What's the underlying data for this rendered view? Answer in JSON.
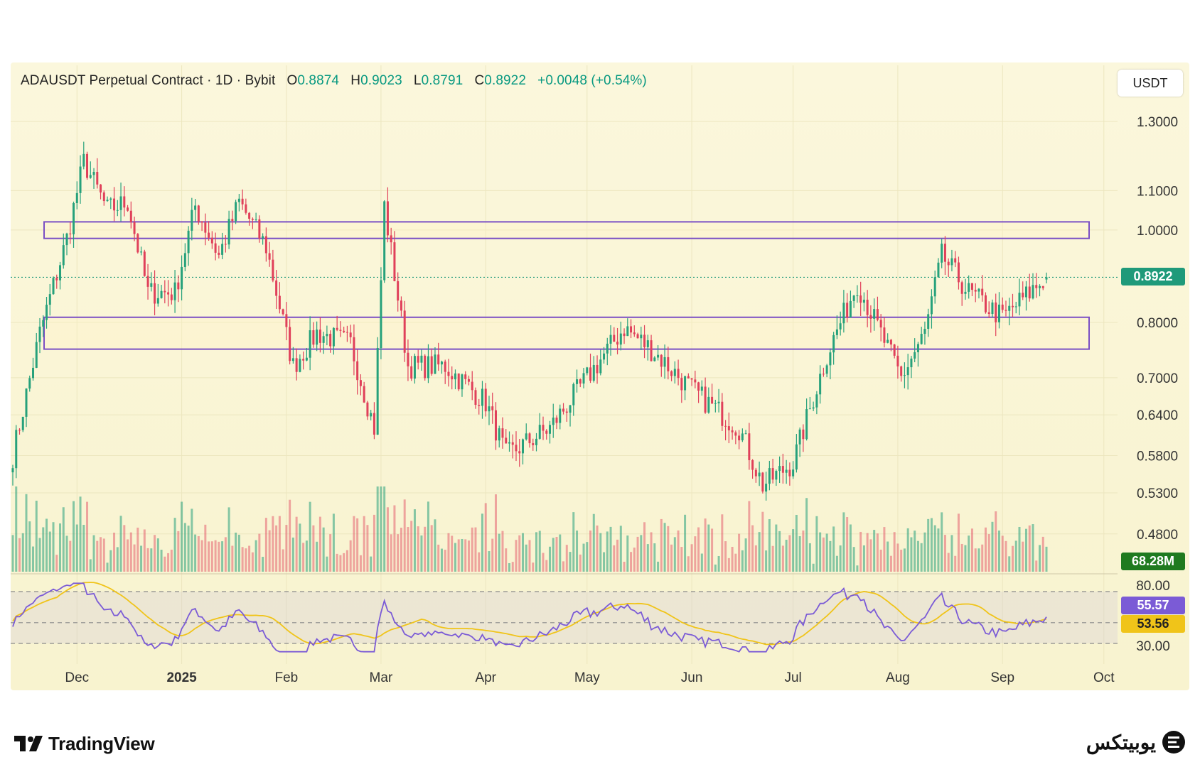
{
  "header": {
    "symbol": "ADAUSDT Perpetual Contract · 1D · Bybit",
    "o_label": "O",
    "o_value": "0.8874",
    "h_label": "H",
    "h_value": "0.9023",
    "l_label": "L",
    "l_value": "0.8791",
    "c_label": "C",
    "c_value": "0.8922",
    "change": "+0.0048 (+0.54%)"
  },
  "currency_button": "USDT",
  "price_axis": {
    "labels": [
      "1.3000",
      "1.1000",
      "1.0000",
      "0.8000",
      "0.7000",
      "0.6400",
      "0.5800",
      "0.5300",
      "0.4800"
    ],
    "current_price_tag": "0.8922",
    "volume_tag": "68.28M"
  },
  "rsi_axis": {
    "labels": [
      "80.00",
      "30.00"
    ],
    "rsi_tag": "55.57",
    "ma_tag": "53.56"
  },
  "time_axis": [
    "Dec",
    "2025",
    "Feb",
    "Mar",
    "Apr",
    "May",
    "Jun",
    "Jul",
    "Aug",
    "Sep",
    "Oct"
  ],
  "branding": {
    "left": "TradingView",
    "right": "یوبیتکس"
  },
  "colors": {
    "up": "#26a17b",
    "down": "#e0405a",
    "zone": "#7a4fc4",
    "rsi": "#7b5bd6",
    "rsi_ma": "#f0c419",
    "volume_tag": "#1f7a1f",
    "price_tag": "#1f9a7a"
  },
  "chart_data": {
    "type": "candlestick",
    "symbol": "ADAUSDT",
    "timeframe": "1D",
    "scale": "log",
    "last": {
      "open": 0.8874,
      "high": 0.9023,
      "low": 0.8791,
      "close": 0.8922,
      "change": 0.0048,
      "change_pct": 0.54
    },
    "zones": [
      {
        "from": 0.98,
        "to": 1.02
      },
      {
        "from": 0.75,
        "to": 0.81
      }
    ],
    "close_path": [
      {
        "date": "2024-11-12",
        "close": 0.58
      },
      {
        "date": "2024-11-20",
        "close": 0.78
      },
      {
        "date": "2024-11-28",
        "close": 0.98
      },
      {
        "date": "2024-12-03",
        "close": 1.18
      },
      {
        "date": "2024-12-10",
        "close": 1.05
      },
      {
        "date": "2024-12-16",
        "close": 1.07
      },
      {
        "date": "2024-12-22",
        "close": 0.86
      },
      {
        "date": "2024-12-30",
        "close": 0.86
      },
      {
        "date": "2025-01-05",
        "close": 1.06
      },
      {
        "date": "2025-01-12",
        "close": 0.94
      },
      {
        "date": "2025-01-18",
        "close": 1.07
      },
      {
        "date": "2025-01-26",
        "close": 0.96
      },
      {
        "date": "2025-02-03",
        "close": 0.72
      },
      {
        "date": "2025-02-10",
        "close": 0.78
      },
      {
        "date": "2025-02-20",
        "close": 0.76
      },
      {
        "date": "2025-02-27",
        "close": 0.62
      },
      {
        "date": "2025-03-02",
        "close": 1.06
      },
      {
        "date": "2025-03-09",
        "close": 0.72
      },
      {
        "date": "2025-03-20",
        "close": 0.72
      },
      {
        "date": "2025-04-01",
        "close": 0.66
      },
      {
        "date": "2025-04-07",
        "close": 0.58
      },
      {
        "date": "2025-04-20",
        "close": 0.62
      },
      {
        "date": "2025-05-01",
        "close": 0.7
      },
      {
        "date": "2025-05-12",
        "close": 0.79
      },
      {
        "date": "2025-05-20",
        "close": 0.75
      },
      {
        "date": "2025-06-01",
        "close": 0.68
      },
      {
        "date": "2025-06-15",
        "close": 0.62
      },
      {
        "date": "2025-06-22",
        "close": 0.54
      },
      {
        "date": "2025-07-01",
        "close": 0.57
      },
      {
        "date": "2025-07-11",
        "close": 0.74
      },
      {
        "date": "2025-07-20",
        "close": 0.88
      },
      {
        "date": "2025-08-02",
        "close": 0.7
      },
      {
        "date": "2025-08-09",
        "close": 0.78
      },
      {
        "date": "2025-08-14",
        "close": 0.94
      },
      {
        "date": "2025-08-22",
        "close": 0.86
      },
      {
        "date": "2025-09-01",
        "close": 0.81
      },
      {
        "date": "2025-09-14",
        "close": 0.8922
      }
    ],
    "volume_last": "68.28M",
    "rsi": {
      "levels": [
        80,
        30
      ],
      "value": 55.57,
      "ma": 53.56
    }
  }
}
